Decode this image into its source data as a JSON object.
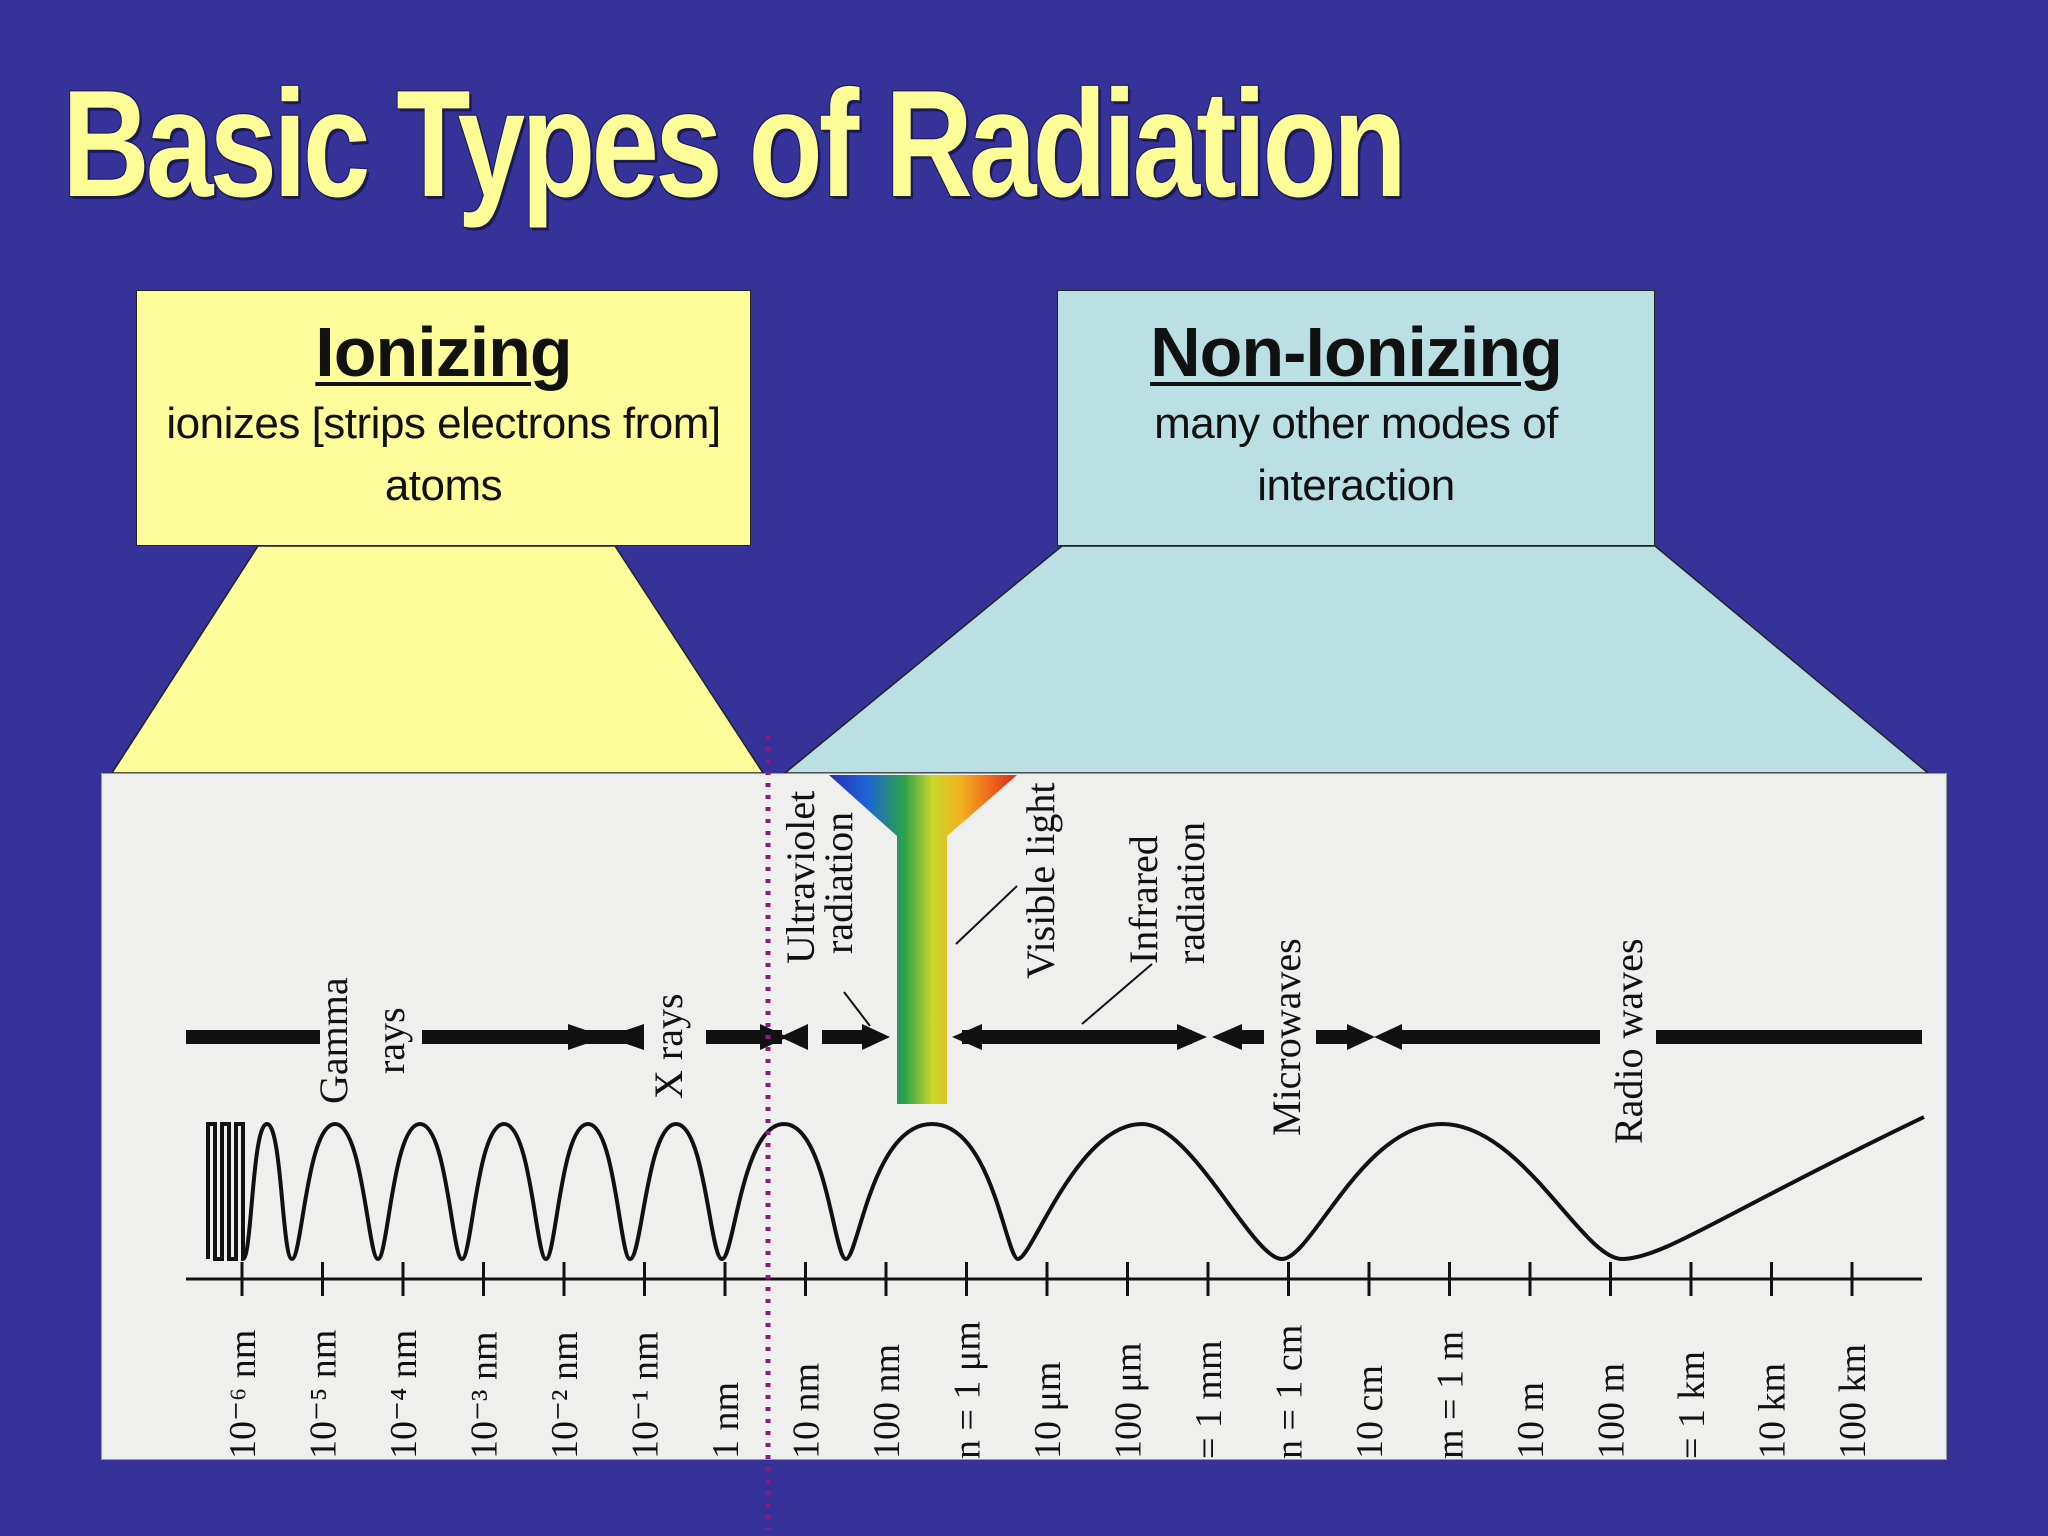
{
  "slide": {
    "title": "Basic Types of Radiation",
    "background_color": "#37329a",
    "title_color": "#fcfd96"
  },
  "ionizing": {
    "heading": "Ionizing",
    "description_line1": "ionizes [strips electrons from]",
    "description_line2": "atoms",
    "color": "#fdfd9b"
  },
  "non_ionizing": {
    "heading": "Non-Ionizing",
    "description_line1": "many other modes of",
    "description_line2": "interaction",
    "color": "#bbe0e3"
  },
  "spectrum": {
    "bands": [
      "Gamma",
      "rays",
      "X rays",
      "Ultraviolet",
      "radiation",
      "Visible light",
      "Infrared",
      "radiation",
      "Microwaves",
      "Radio waves"
    ],
    "ticks": [
      "10⁻⁶ nm",
      "10⁻⁵ nm",
      "10⁻⁴ nm",
      "10⁻³ nm",
      "10⁻² nm",
      "10⁻¹ nm",
      "1 nm",
      "10 nm",
      "100 nm",
      "n = 1 μm",
      "10 μm",
      "100 μm",
      "= 1 mm",
      "n = 1 cm",
      "10 cm",
      "m = 1 m",
      "10 m",
      "100 m",
      "= 1 km",
      "10 km",
      "100 km"
    ],
    "boundary_marker": "dotted-purple-line"
  }
}
